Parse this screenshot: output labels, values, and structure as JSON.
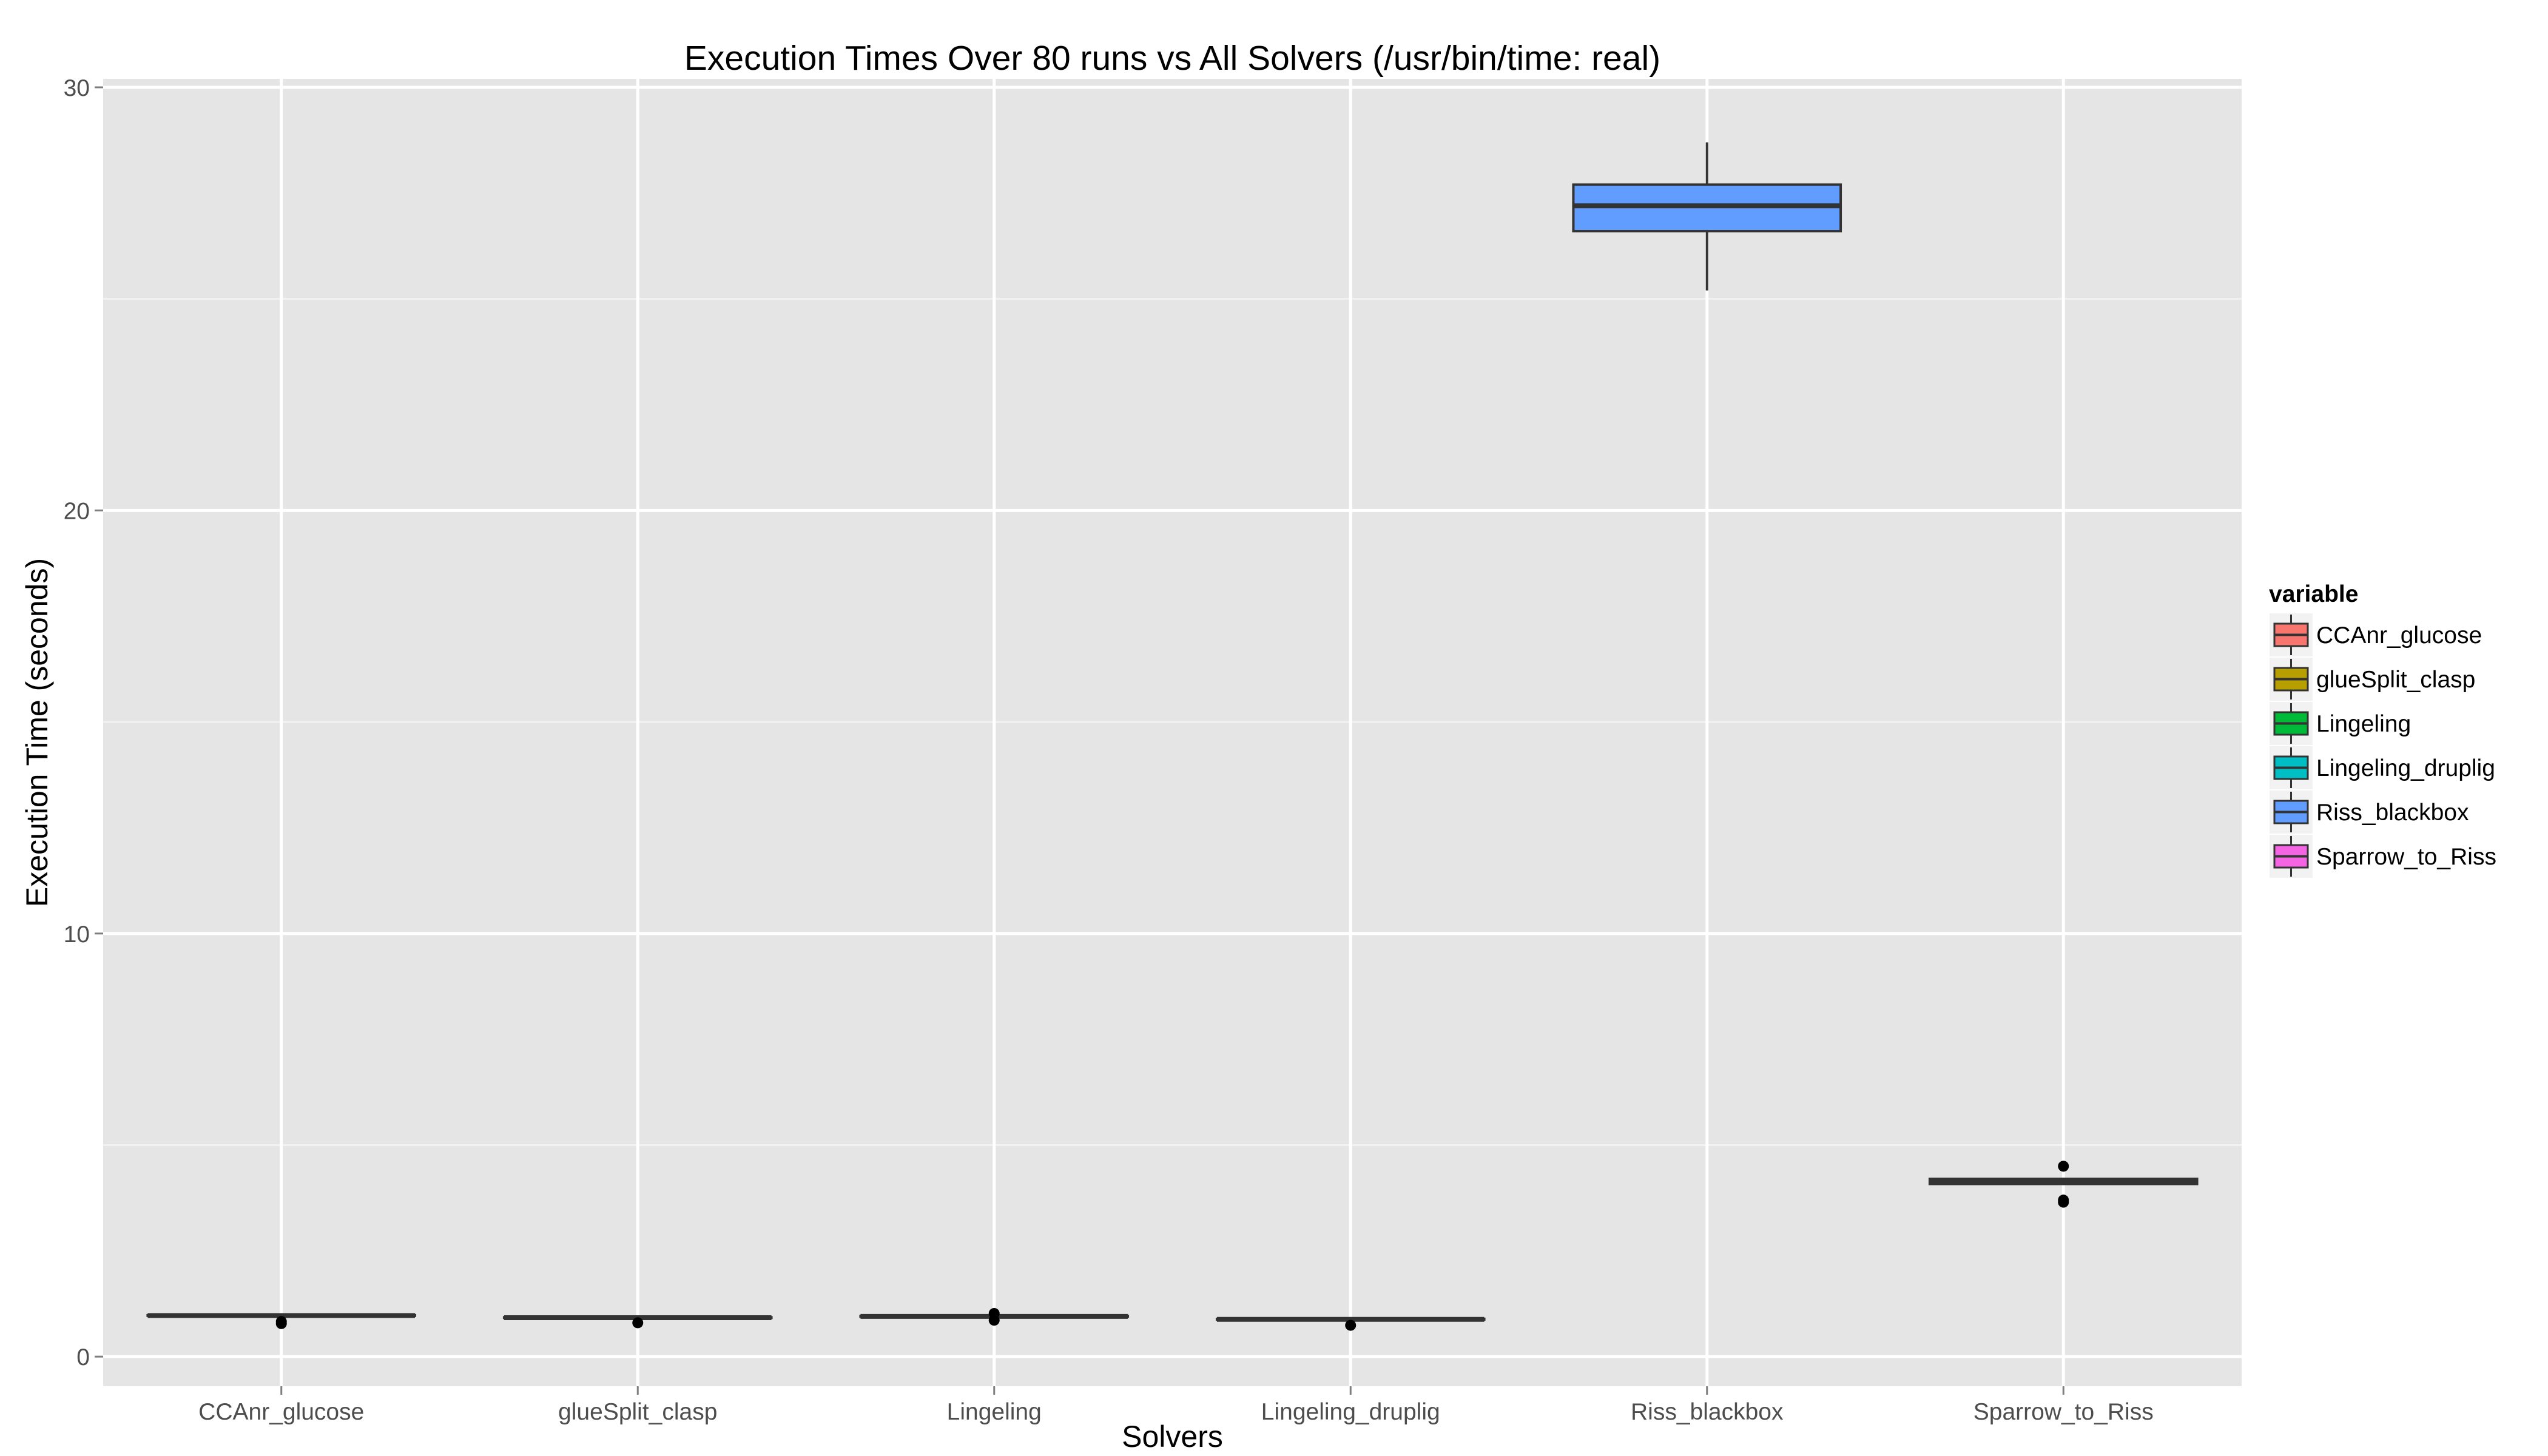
{
  "chart_data": {
    "type": "box",
    "title": "Execution Times Over 80 runs vs All Solvers (/usr/bin/time: real)",
    "xlabel": "Solvers",
    "ylabel": "Execution Time (seconds)",
    "ylim": [
      -0.7,
      30.2
    ],
    "yticks": [
      0,
      10,
      20,
      30
    ],
    "ytick_labels": [
      "0",
      "10",
      "20",
      "30"
    ],
    "grid": true,
    "legend": {
      "title": "variable",
      "position": "right"
    },
    "categories": [
      "CCAnr_glucose",
      "glueSplit_clasp",
      "Lingeling",
      "Lingeling_druplig",
      "Riss_blackbox",
      "Sparrow_to_Riss"
    ],
    "series": [
      {
        "name": "CCAnr_glucose",
        "color": "#F8766D",
        "min": 0.97,
        "q1": 0.97,
        "median": 0.97,
        "q3": 0.98,
        "max": 0.98,
        "outliers": [
          0.83,
          0.78
        ]
      },
      {
        "name": "glueSplit_clasp",
        "color": "#B79F00",
        "min": 0.92,
        "q1": 0.92,
        "median": 0.92,
        "q3": 0.93,
        "max": 0.93,
        "outliers": [
          0.8
        ]
      },
      {
        "name": "Lingeling",
        "color": "#00BA38",
        "min": 0.95,
        "q1": 0.95,
        "median": 0.95,
        "q3": 0.96,
        "max": 0.96,
        "outliers": [
          1.02,
          0.86
        ]
      },
      {
        "name": "Lingeling_druplig",
        "color": "#00BFC4",
        "min": 0.88,
        "q1": 0.88,
        "median": 0.88,
        "q3": 0.89,
        "max": 0.89,
        "outliers": [
          0.74
        ]
      },
      {
        "name": "Riss_blackbox",
        "color": "#619CFF",
        "min": 25.2,
        "q1": 26.6,
        "median": 27.2,
        "q3": 27.7,
        "max": 28.7,
        "outliers": []
      },
      {
        "name": "Sparrow_to_Riss",
        "color": "#F564E3",
        "min": 4.08,
        "q1": 4.08,
        "median": 4.15,
        "q3": 4.2,
        "max": 4.2,
        "outliers": [
          4.5,
          3.7,
          3.65
        ]
      }
    ]
  }
}
